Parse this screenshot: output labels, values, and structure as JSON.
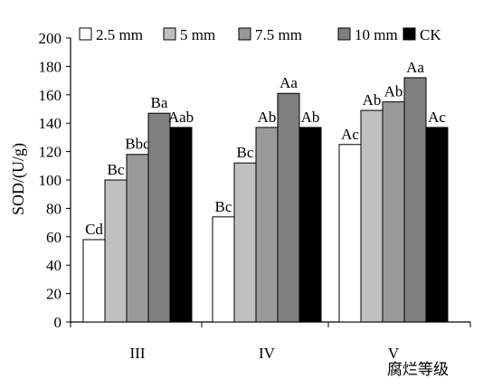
{
  "chart_data": {
    "type": "bar",
    "ylabel": "SOD/(U/g)",
    "xlabel": "腐烂等级",
    "ylim": [
      0,
      200
    ],
    "yticks": [
      0,
      20,
      40,
      60,
      80,
      100,
      120,
      140,
      160,
      180,
      200
    ],
    "grid": false,
    "legend_position": "top",
    "categories": [
      "III",
      "IV",
      "V"
    ],
    "series": [
      {
        "name": "2.5 mm",
        "color": "#ffffff",
        "values": [
          58,
          74,
          125
        ],
        "labels": [
          "Cd",
          "Bc",
          "Ac"
        ]
      },
      {
        "name": "5 mm",
        "color": "#c0c0c0",
        "values": [
          100,
          112,
          149
        ],
        "labels": [
          "Bc",
          "Bc",
          "Ab"
        ]
      },
      {
        "name": "7.5 mm",
        "color": "#999999",
        "values": [
          118,
          137,
          155
        ],
        "labels": [
          "Bbc",
          "Ab",
          "Ab"
        ]
      },
      {
        "name": "10 mm",
        "color": "#7f7f7f",
        "values": [
          147,
          161,
          172
        ],
        "labels": [
          "Ba",
          "Aa",
          "Aa"
        ]
      },
      {
        "name": "CK",
        "color": "#000000",
        "values": [
          137,
          137,
          137
        ],
        "labels": [
          "Aab",
          "Ab",
          "Ac"
        ]
      }
    ]
  }
}
